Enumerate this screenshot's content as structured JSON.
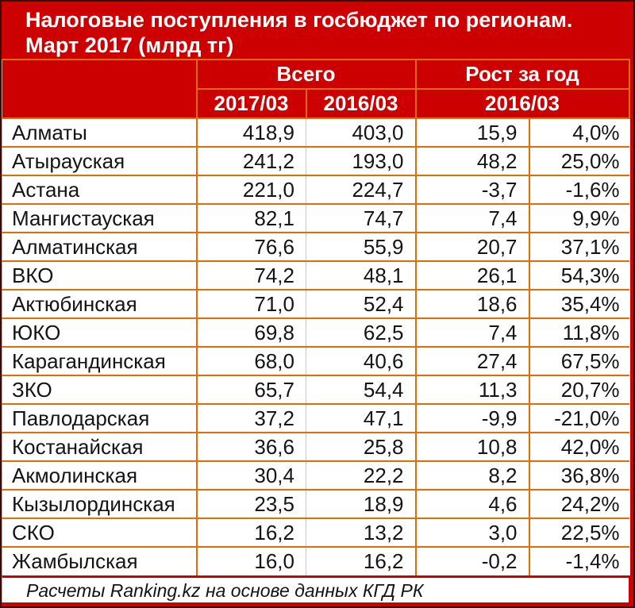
{
  "title": {
    "line1": "Налоговые поступления в госбюджет по регионам.",
    "line2": "Март 2017 (млрд тг)"
  },
  "footer": {
    "credit": "Расчеты Ranking.kz на основе данных КГД РК"
  },
  "colors": {
    "banner_red": "#cc0000",
    "grid_orange": "#e26b0a",
    "inner_divider_gray": "#c6c6c6",
    "header_text": "#ffffff",
    "body_text": "#141414"
  },
  "chart_data": {
    "type": "table",
    "title": "Налоговые поступления в госбюджет по регионам. Март 2017 (млрд тг)",
    "header": {
      "groups": [
        {
          "label": "Всего",
          "span": 2
        },
        {
          "label": "Рост за год",
          "span": 2
        }
      ],
      "subcolumns": [
        {
          "label": "2017/03",
          "span": 1
        },
        {
          "label": "2016/03",
          "span": 1
        },
        {
          "label": "2016/03",
          "span": 2
        }
      ]
    },
    "rows": [
      [
        "Алматы",
        "418,9",
        "403,0",
        "15,9",
        "4,0%"
      ],
      [
        "Атырауская",
        "241,2",
        "193,0",
        "48,2",
        "25,0%"
      ],
      [
        "Астана",
        "221,0",
        "224,7",
        "-3,7",
        "-1,6%"
      ],
      [
        "Мангистауская",
        "82,1",
        "74,7",
        "7,4",
        "9,9%"
      ],
      [
        "Алматинская",
        "76,6",
        "55,9",
        "20,7",
        "37,1%"
      ],
      [
        "ВКО",
        "74,2",
        "48,1",
        "26,1",
        "54,3%"
      ],
      [
        "Актюбинская",
        "71,0",
        "52,4",
        "18,6",
        "35,4%"
      ],
      [
        "ЮКО",
        "69,8",
        "62,5",
        "7,4",
        "11,8%"
      ],
      [
        "Карагандинская",
        "68,0",
        "40,6",
        "27,4",
        "67,5%"
      ],
      [
        "ЗКО",
        "65,7",
        "54,4",
        "11,3",
        "20,7%"
      ],
      [
        "Павлодарская",
        "37,2",
        "47,1",
        "-9,9",
        "-21,0%"
      ],
      [
        "Костанайская",
        "36,6",
        "25,8",
        "10,8",
        "42,0%"
      ],
      [
        "Акмолинская",
        "30,4",
        "22,2",
        "8,2",
        "36,8%"
      ],
      [
        "Кызылординская",
        "23,5",
        "18,9",
        "4,6",
        "24,2%"
      ],
      [
        "СКО",
        "16,2",
        "13,2",
        "3,0",
        "22,5%"
      ],
      [
        "Жамбылская",
        "16,0",
        "16,2",
        "-0,2",
        "-1,4%"
      ]
    ]
  }
}
